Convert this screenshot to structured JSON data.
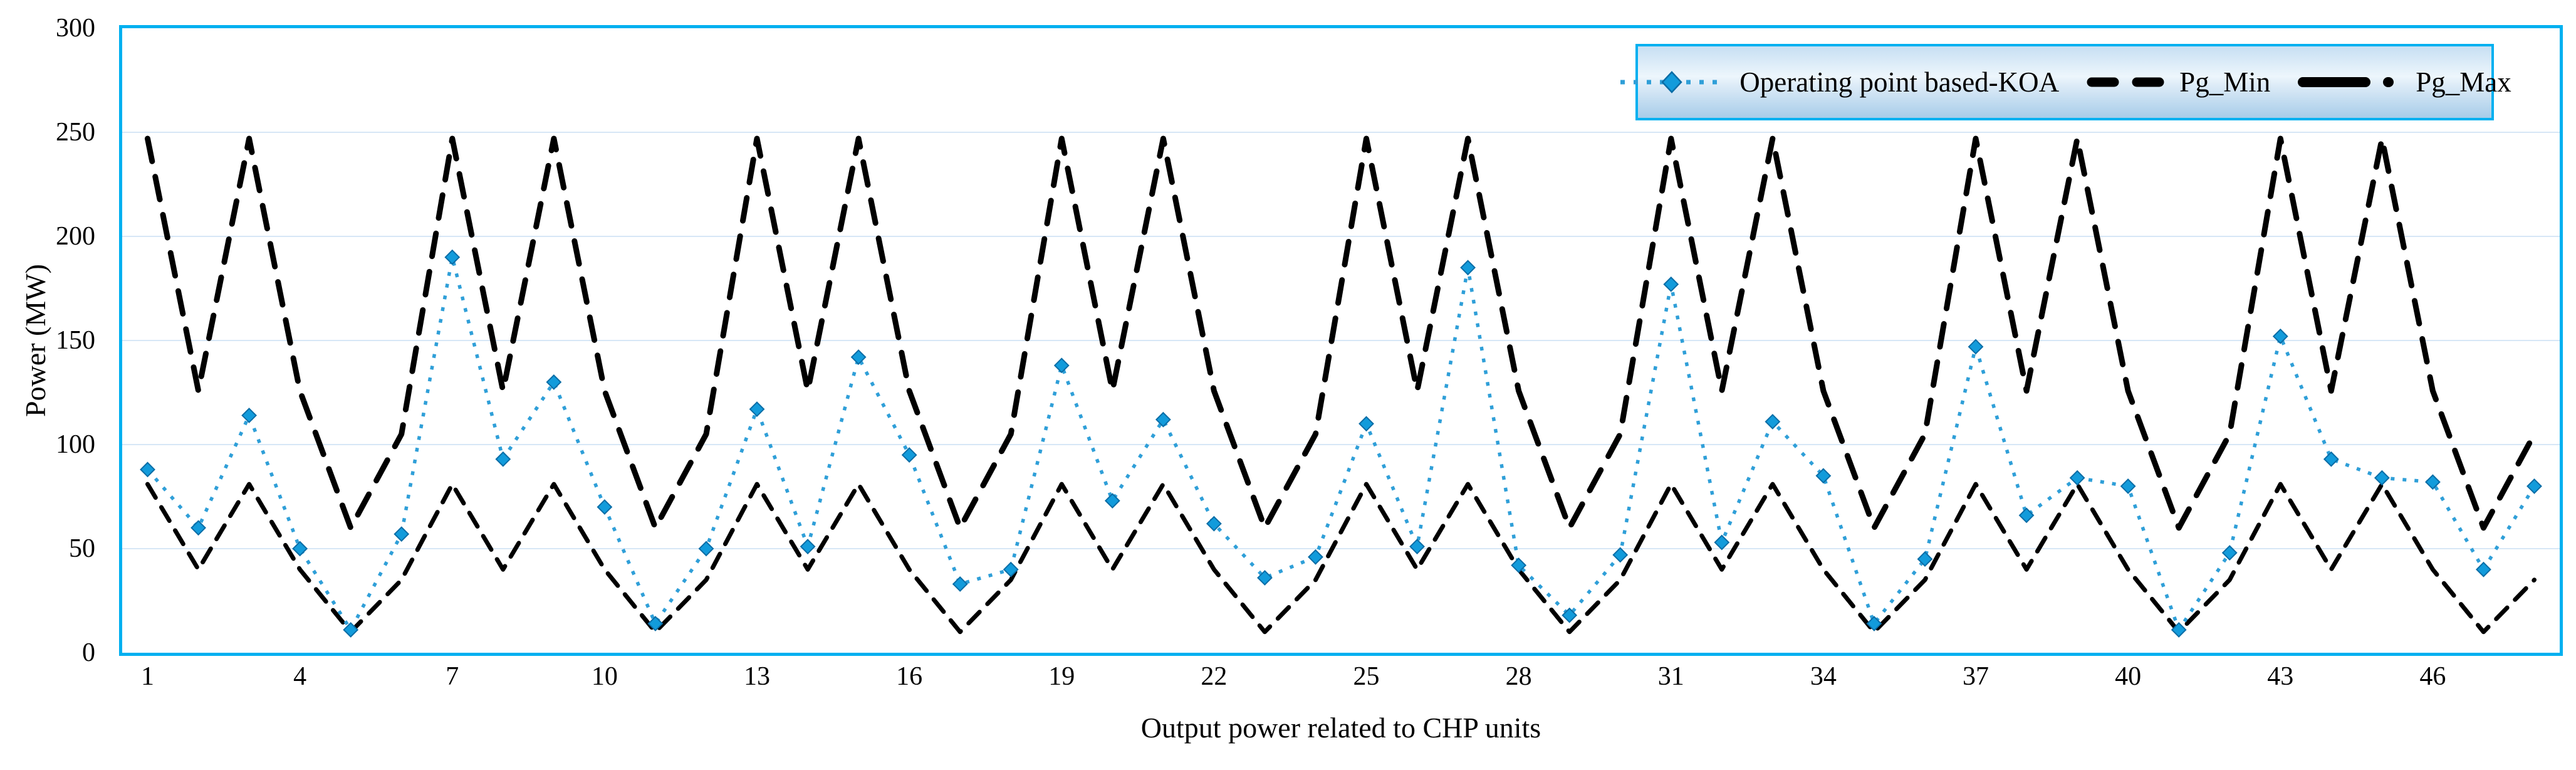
{
  "colors": {
    "plot_border": "#00B0F0",
    "gridline": "#D7E7F6",
    "koa_line": "#2F9FD8",
    "koa_marker_fill": "#129BDB",
    "koa_marker_stroke": "#0B6DA6",
    "limit_lines": "#000000",
    "legend_gradient_top": "#C7DFF3",
    "legend_gradient_mid": "#EDF6FC",
    "legend_gradient_bottom": "#A7CCE9",
    "text": "#000000"
  },
  "legend": {
    "items": [
      {
        "label": "Operating point based-KOA",
        "style": "dotted-diamond"
      },
      {
        "label": "Pg_Min",
        "style": "dashed"
      },
      {
        "label": "Pg_Max",
        "style": "long-dash-dot"
      }
    ]
  },
  "chart_data": {
    "type": "line",
    "title": "",
    "xlabel": "Output power related to CHP units",
    "ylabel": "Power (MW)",
    "ylim": [
      0,
      300
    ],
    "y_ticks": [
      0,
      50,
      100,
      150,
      200,
      250,
      300
    ],
    "x_tick_labels": [
      1,
      4,
      7,
      10,
      13,
      16,
      19,
      22,
      25,
      28,
      31,
      34,
      37,
      40,
      43,
      46
    ],
    "x_count": 48,
    "grid": "horizontal",
    "legend_position": "top-right-inside",
    "series": [
      {
        "name": "Operating point based-KOA",
        "style": "dotted-diamond",
        "color": "#2F9FD8",
        "values": [
          88,
          60,
          114,
          50,
          11,
          57,
          190,
          93,
          130,
          70,
          14,
          50,
          117,
          51,
          142,
          95,
          33,
          40,
          138,
          73,
          112,
          62,
          36,
          46,
          110,
          51,
          185,
          42,
          18,
          47,
          177,
          53,
          111,
          85,
          14,
          45,
          147,
          66,
          84,
          80,
          11,
          48,
          152,
          93,
          84,
          82,
          40,
          80
        ]
      },
      {
        "name": "Pg_Min",
        "style": "dashed",
        "color": "#000000",
        "values": [
          81,
          40,
          81,
          40,
          10,
          35,
          81,
          40,
          81,
          40,
          10,
          35,
          81,
          40,
          81,
          40,
          10,
          35,
          81,
          40,
          81,
          40,
          10,
          35,
          81,
          40,
          81,
          40,
          10,
          35,
          81,
          40,
          81,
          40,
          10,
          35,
          81,
          40,
          81,
          40,
          10,
          35,
          81,
          40,
          81,
          40,
          10,
          35
        ]
      },
      {
        "name": "Pg_Max",
        "style": "long-dash",
        "color": "#000000",
        "values": [
          247,
          125.8,
          247,
          125.8,
          60,
          105,
          247,
          125.8,
          247,
          125.8,
          60,
          105,
          247,
          125.8,
          247,
          125.8,
          60,
          105,
          247,
          125.8,
          247,
          125.8,
          60,
          105,
          247,
          125.8,
          247,
          125.8,
          60,
          105,
          247,
          125.8,
          247,
          125.8,
          60,
          105,
          247,
          125.8,
          247,
          125.8,
          60,
          105,
          247,
          125.8,
          247,
          125.8,
          60,
          105
        ]
      }
    ]
  }
}
